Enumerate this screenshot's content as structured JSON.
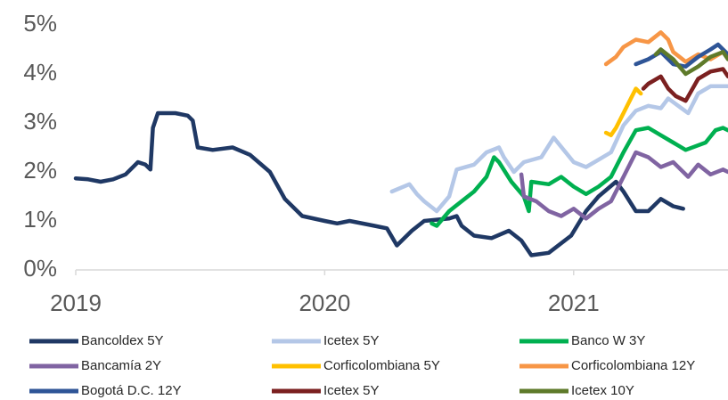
{
  "chart_data": {
    "type": "line",
    "xlim": [
      2019.0,
      2021.62
    ],
    "xticks": [
      2019,
      2020,
      2021
    ],
    "ylim": [
      0,
      5
    ],
    "yticks": [
      {
        "value": 0,
        "label": "0%"
      },
      {
        "value": 1,
        "label": "1%"
      },
      {
        "value": 2,
        "label": "2%"
      },
      {
        "value": 3,
        "label": "3%"
      },
      {
        "value": 4,
        "label": "4%"
      },
      {
        "value": 5,
        "label": "5%"
      }
    ],
    "legend": "bottom",
    "series": [
      {
        "name": "Bancoldex 5Y",
        "color": "#1f3864",
        "x": [
          2019.0,
          2019.05,
          2019.1,
          2019.15,
          2019.2,
          2019.25,
          2019.28,
          2019.3,
          2019.31,
          2019.33,
          2019.4,
          2019.45,
          2019.47,
          2019.49,
          2019.55,
          2019.63,
          2019.7,
          2019.78,
          2019.84,
          2019.91,
          2020.0,
          2020.05,
          2020.1,
          2020.2,
          2020.25,
          2020.29,
          2020.35,
          2020.4,
          2020.5,
          2020.53,
          2020.55,
          2020.6,
          2020.67,
          2020.74,
          2020.79,
          2020.83,
          2020.9,
          2020.99,
          2021.05,
          2021.1,
          2021.17,
          2021.2,
          2021.25,
          2021.3,
          2021.35,
          2021.4,
          2021.44
        ],
        "values": [
          1.87,
          1.85,
          1.8,
          1.85,
          1.95,
          2.2,
          2.15,
          2.05,
          2.9,
          3.2,
          3.2,
          3.15,
          3.05,
          2.5,
          2.45,
          2.5,
          2.35,
          2.0,
          1.45,
          1.1,
          1.0,
          0.95,
          1.0,
          0.9,
          0.85,
          0.5,
          0.8,
          1.0,
          1.05,
          1.1,
          0.9,
          0.7,
          0.65,
          0.8,
          0.6,
          0.3,
          0.35,
          0.7,
          1.2,
          1.5,
          1.8,
          1.6,
          1.2,
          1.2,
          1.45,
          1.3,
          1.25
        ]
      },
      {
        "name": "Icetex 5Y",
        "color": "#b4c7e7",
        "x": [
          2020.27,
          2020.34,
          2020.37,
          2020.4,
          2020.45,
          2020.5,
          2020.53,
          2020.6,
          2020.65,
          2020.7,
          2020.72,
          2020.76,
          2020.8,
          2020.87,
          2020.92,
          2021.0,
          2021.05,
          2021.1,
          2021.15,
          2021.2,
          2021.25,
          2021.3,
          2021.35,
          2021.38,
          2021.46,
          2021.5,
          2021.55,
          2021.62
        ],
        "values": [
          1.6,
          1.75,
          1.55,
          1.4,
          1.2,
          1.5,
          2.05,
          2.15,
          2.4,
          2.5,
          2.3,
          2.0,
          2.2,
          2.3,
          2.7,
          2.2,
          2.1,
          2.25,
          2.4,
          2.95,
          3.25,
          3.35,
          3.3,
          3.5,
          3.2,
          3.6,
          3.75,
          3.75
        ]
      },
      {
        "name": "Banco W 3Y",
        "color": "#00b050",
        "x": [
          2020.43,
          2020.45,
          2020.5,
          2020.6,
          2020.65,
          2020.68,
          2020.7,
          2020.75,
          2020.8,
          2020.82,
          2020.83,
          2020.9,
          2020.95,
          2021.0,
          2021.05,
          2021.1,
          2021.15,
          2021.2,
          2021.25,
          2021.3,
          2021.35,
          2021.4,
          2021.45,
          2021.53,
          2021.57,
          2021.6,
          2021.62
        ],
        "values": [
          0.95,
          0.9,
          1.2,
          1.6,
          1.9,
          2.3,
          2.2,
          1.8,
          1.5,
          1.2,
          1.8,
          1.75,
          1.9,
          1.7,
          1.55,
          1.7,
          1.9,
          2.4,
          2.85,
          2.9,
          2.75,
          2.6,
          2.45,
          2.6,
          2.85,
          2.9,
          2.85
        ]
      },
      {
        "name": "Bancamía 2Y",
        "color": "#8064a2",
        "x": [
          2020.79,
          2020.8,
          2020.85,
          2020.9,
          2020.95,
          2021.0,
          2021.05,
          2021.1,
          2021.15,
          2021.2,
          2021.25,
          2021.3,
          2021.35,
          2021.4,
          2021.46,
          2021.5,
          2021.55,
          2021.6,
          2021.62
        ],
        "values": [
          1.95,
          1.5,
          1.4,
          1.2,
          1.1,
          1.25,
          1.05,
          1.25,
          1.4,
          1.9,
          2.4,
          2.3,
          2.1,
          2.2,
          1.9,
          2.15,
          1.95,
          2.05,
          2.0
        ]
      },
      {
        "name": "Corficolombiana 5Y",
        "color": "#ffc000",
        "x": [
          2021.13,
          2021.15,
          2021.17,
          2021.2,
          2021.23,
          2021.25,
          2021.27
        ],
        "values": [
          2.8,
          2.75,
          2.9,
          3.2,
          3.5,
          3.7,
          3.6
        ]
      },
      {
        "name": "Corficolombiana 12Y",
        "color": "#f79646",
        "x": [
          2021.13,
          2021.17,
          2021.2,
          2021.25,
          2021.3,
          2021.35,
          2021.38,
          2021.4,
          2021.45,
          2021.5,
          2021.55,
          2021.6
        ],
        "values": [
          4.2,
          4.35,
          4.55,
          4.7,
          4.65,
          4.85,
          4.7,
          4.45,
          4.25,
          4.4,
          4.3,
          4.45
        ]
      },
      {
        "name": "Bogotá D.C. 12Y",
        "color": "#2f5597",
        "x": [
          2021.25,
          2021.3,
          2021.35,
          2021.4,
          2021.45,
          2021.5,
          2021.55,
          2021.58,
          2021.62
        ],
        "values": [
          4.2,
          4.3,
          4.45,
          4.2,
          4.15,
          4.35,
          4.5,
          4.6,
          4.4
        ]
      },
      {
        "name": "Icetex 5Y",
        "color": "#7b2020",
        "x": [
          2021.28,
          2021.3,
          2021.35,
          2021.38,
          2021.41,
          2021.45,
          2021.5,
          2021.55,
          2021.6,
          2021.62
        ],
        "values": [
          3.7,
          3.8,
          3.95,
          3.7,
          3.55,
          3.45,
          3.9,
          4.05,
          4.1,
          3.95
        ]
      },
      {
        "name": "Icetex 10Y",
        "color": "#5e7a2a",
        "x": [
          2021.33,
          2021.35,
          2021.4,
          2021.45,
          2021.5,
          2021.55,
          2021.6,
          2021.62
        ],
        "values": [
          4.4,
          4.5,
          4.3,
          4.0,
          4.15,
          4.35,
          4.45,
          4.3
        ]
      }
    ]
  }
}
